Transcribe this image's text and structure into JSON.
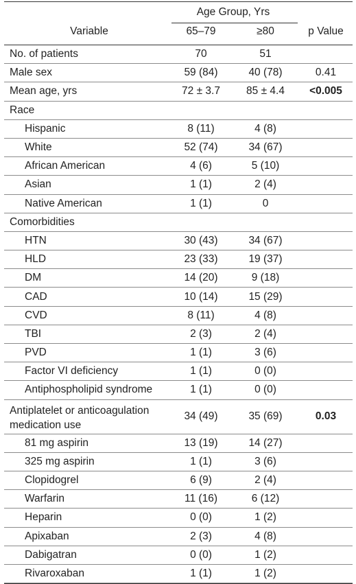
{
  "header": {
    "group_label": "Age Group, Yrs",
    "variable_label": "Variable",
    "col_a": "65–79",
    "col_b": "≥80",
    "p_label": "p Value"
  },
  "rows": [
    {
      "label": "No. of patients",
      "a": "70",
      "b": "51",
      "p": ""
    },
    {
      "label": "Male sex",
      "a": "59 (84)",
      "b": "40 (78)",
      "p": "0.41"
    },
    {
      "label": "Mean age, yrs",
      "a": "72 ± 3.7",
      "b": "85 ± 4.4",
      "p": "<0.005",
      "p_bold": true
    },
    {
      "label": "Race",
      "a": "",
      "b": "",
      "p": ""
    },
    {
      "label": "Hispanic",
      "a": "8 (11)",
      "b": "4 (8)",
      "p": "",
      "indent": true
    },
    {
      "label": "White",
      "a": "52 (74)",
      "b": "34 (67)",
      "p": "",
      "indent": true
    },
    {
      "label": "African American",
      "a": "4 (6)",
      "b": "5 (10)",
      "p": "",
      "indent": true
    },
    {
      "label": "Asian",
      "a": "1 (1)",
      "b": "2 (4)",
      "p": "",
      "indent": true
    },
    {
      "label": "Native American",
      "a": "1 (1)",
      "b": "0",
      "p": "",
      "indent": true
    },
    {
      "label": "Comorbidities",
      "a": "",
      "b": "",
      "p": ""
    },
    {
      "label": "HTN",
      "a": "30 (43)",
      "b": "34 (67)",
      "p": "",
      "indent": true
    },
    {
      "label": "HLD",
      "a": "23 (33)",
      "b": "19 (37)",
      "p": "",
      "indent": true
    },
    {
      "label": "DM",
      "a": "14 (20)",
      "b": "9 (18)",
      "p": "",
      "indent": true
    },
    {
      "label": "CAD",
      "a": "10 (14)",
      "b": "15 (29)",
      "p": "",
      "indent": true
    },
    {
      "label": "CVD",
      "a": "8 (11)",
      "b": "4 (8)",
      "p": "",
      "indent": true
    },
    {
      "label": "TBI",
      "a": "2 (3)",
      "b": "2 (4)",
      "p": "",
      "indent": true
    },
    {
      "label": "PVD",
      "a": "1 (1)",
      "b": "3 (6)",
      "p": "",
      "indent": true
    },
    {
      "label": "Factor VI deficiency",
      "a": "1 (1)",
      "b": "0 (0)",
      "p": "",
      "indent": true
    },
    {
      "label": "Antiphospholipid syndrome",
      "a": "1 (1)",
      "b": "0 (0)",
      "p": "",
      "indent": true
    },
    {
      "label": "Antiplatelet or anticoagulation medication use",
      "a": "34 (49)",
      "b": "35 (69)",
      "p": "0.03",
      "p_bold": true,
      "tall": true
    },
    {
      "label": "81 mg aspirin",
      "a": "13 (19)",
      "b": "14 (27)",
      "p": "",
      "indent": true
    },
    {
      "label": "325 mg aspirin",
      "a": "1 (1)",
      "b": "3 (6)",
      "p": "",
      "indent": true
    },
    {
      "label": "Clopidogrel",
      "a": "6 (9)",
      "b": "2 (4)",
      "p": "",
      "indent": true
    },
    {
      "label": "Warfarin",
      "a": "11 (16)",
      "b": "6 (12)",
      "p": "",
      "indent": true
    },
    {
      "label": "Heparin",
      "a": "0 (0)",
      "b": "1 (2)",
      "p": "",
      "indent": true
    },
    {
      "label": "Apixaban",
      "a": "2 (3)",
      "b": "4 (8)",
      "p": "",
      "indent": true
    },
    {
      "label": "Dabigatran",
      "a": "0 (0)",
      "b": "1 (2)",
      "p": "",
      "indent": true
    },
    {
      "label": "Rivaroxaban",
      "a": "1 (1)",
      "b": "1 (2)",
      "p": "",
      "indent": true
    }
  ]
}
